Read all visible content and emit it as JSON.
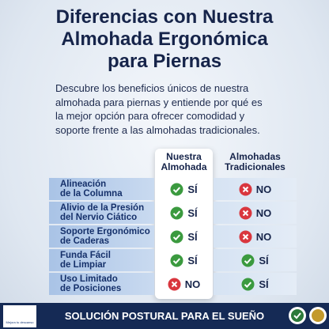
{
  "title_lines": [
    "Diferencias con Nuestra",
    "Almohada Ergonómica",
    "para Piernas"
  ],
  "description_lines": [
    "Descubre los beneficios únicos de nuestra",
    "almohada para piernas y entiende por qué es",
    "la mejor opción para ofrecer comodidad y",
    "soporte frente a las almohadas tradicionales."
  ],
  "table": {
    "headers": [
      [
        "Nuestra",
        "Almohada"
      ],
      [
        "Almohadas",
        "Tradicionales"
      ]
    ],
    "rows": [
      {
        "feature": [
          "Alineación",
          "de la Columna"
        ],
        "ours": {
          "label": "SÍ",
          "check": true
        },
        "traditional": {
          "label": "NO",
          "check": false
        }
      },
      {
        "feature": [
          "Alivio de la Presión",
          "del Nervio Ciático"
        ],
        "ours": {
          "label": "SÍ",
          "check": true
        },
        "traditional": {
          "label": "NO",
          "check": false
        }
      },
      {
        "feature": [
          "Soporte Ergonómico",
          "de Caderas"
        ],
        "ours": {
          "label": "SÍ",
          "check": true
        },
        "traditional": {
          "label": "NO",
          "check": false
        }
      },
      {
        "feature": [
          "Funda Fácil",
          "de Limpiar"
        ],
        "ours": {
          "label": "SÍ",
          "check": true
        },
        "traditional": {
          "label": "SÍ",
          "check": true
        }
      },
      {
        "feature": [
          "Uso Limitado",
          "de Posiciones"
        ],
        "ours": {
          "label": "NO",
          "check": false
        },
        "traditional": {
          "label": "SÍ",
          "check": true
        }
      }
    ]
  },
  "footer": {
    "text": "SOLUCIÓN POSTURAL PARA EL SUEÑO",
    "logo_text": "Mejora tu descanso"
  }
}
